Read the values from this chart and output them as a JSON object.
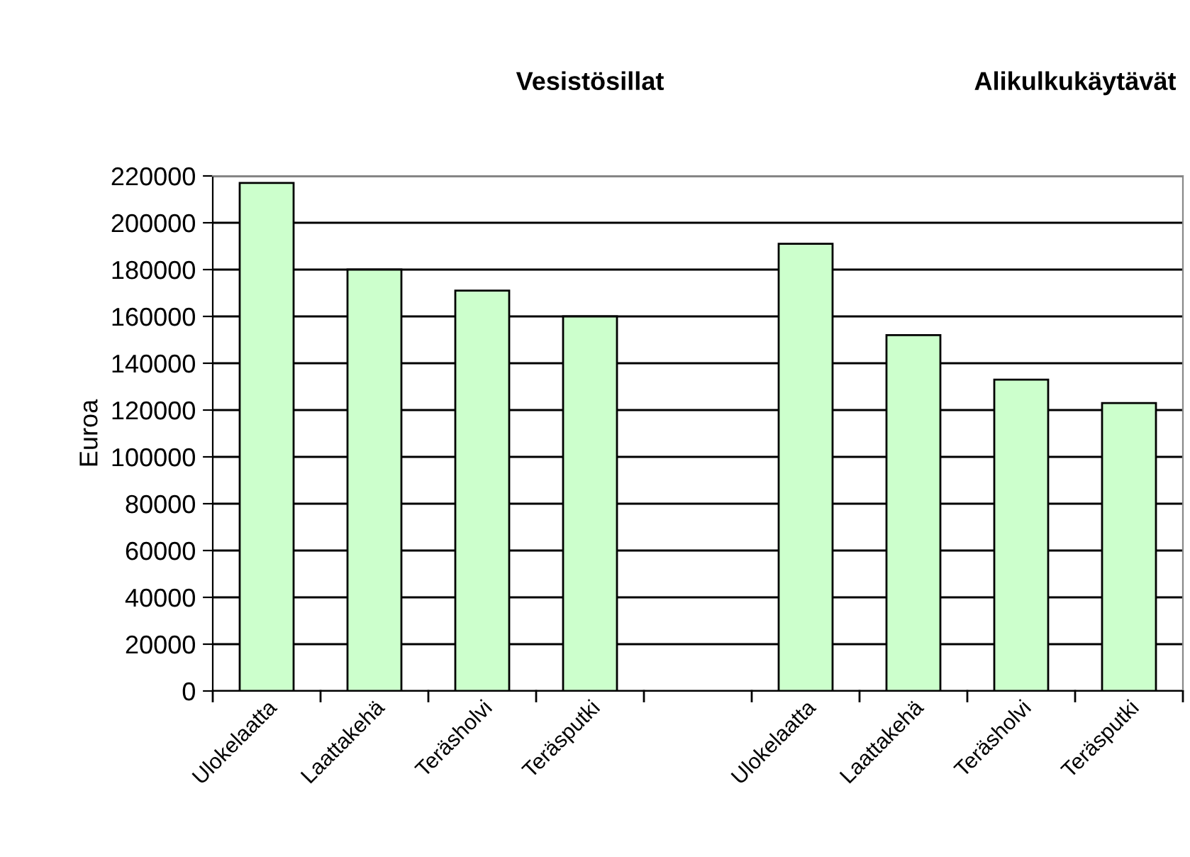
{
  "chart_data": {
    "type": "bar",
    "ylabel": "Euroa",
    "categories": [
      "Ulokelaatta",
      "Laattakehä",
      "Teräsholvi",
      "Teräsputki",
      null,
      "Ulokelaatta",
      "Laattakehä",
      "Teräsholvi",
      "Teräsputki"
    ],
    "values": [
      217000,
      180000,
      171000,
      160000,
      null,
      191000,
      152000,
      133000,
      123000
    ],
    "color": "#ccffcc",
    "ylim": [
      0,
      220000
    ],
    "yticks": [
      0,
      20000,
      40000,
      60000,
      80000,
      100000,
      120000,
      140000,
      160000,
      180000,
      200000,
      220000
    ],
    "grid": "y",
    "legend": false,
    "annotations": [
      "Vesistösillat",
      "Alikulkukäytävät"
    ]
  }
}
